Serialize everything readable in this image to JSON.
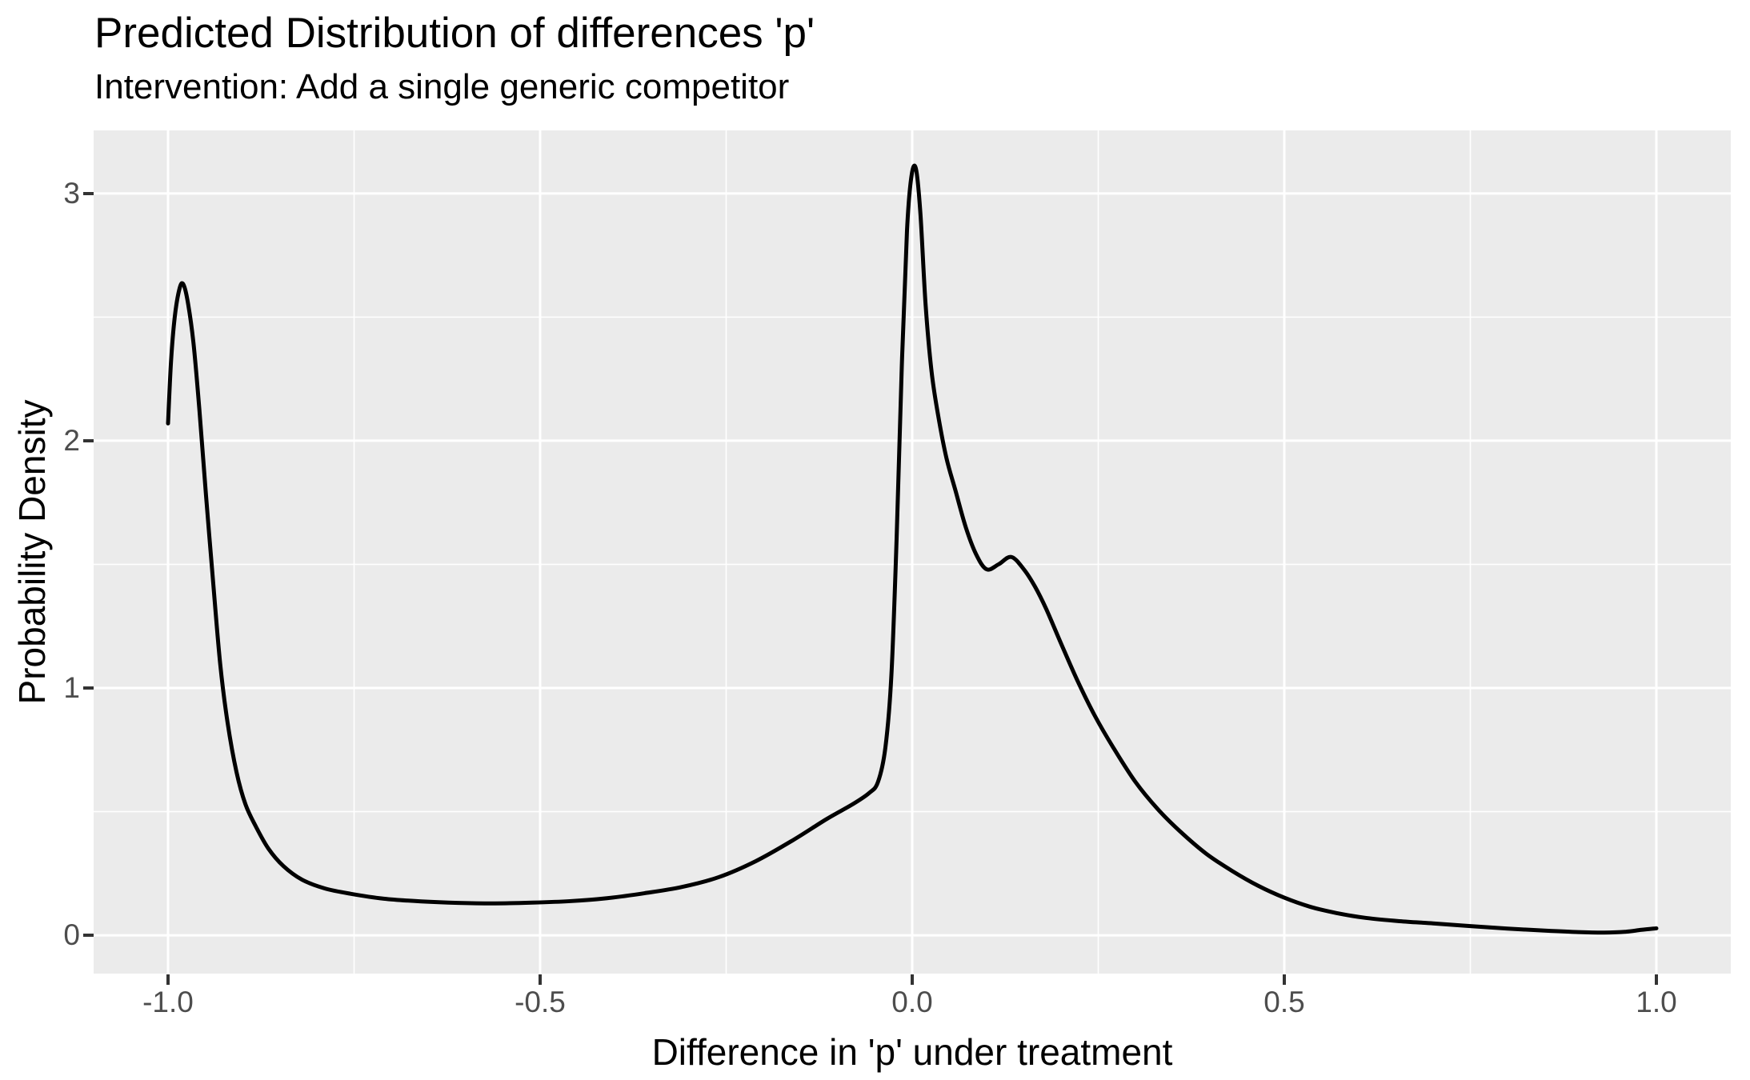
{
  "title": "Predicted Distribution of differences 'p'",
  "subtitle": "Intervention: Add a single generic competitor",
  "chart_data": {
    "type": "line",
    "title": "Predicted Distribution of differences 'p'",
    "subtitle": "Intervention: Add a single generic competitor",
    "xlabel": "Difference in 'p' under treatment",
    "ylabel": "Probability Density",
    "xlim": [
      -1.1,
      1.1
    ],
    "ylim": [
      -0.155,
      3.255
    ],
    "x_tick_values": [
      -1.0,
      -0.5,
      0.0,
      0.5,
      1.0
    ],
    "x_tick_labels": [
      "-1.0",
      "-0.5",
      "0.0",
      "0.5",
      "1.0"
    ],
    "y_tick_values": [
      0,
      1,
      2,
      3
    ],
    "y_tick_labels": [
      "0",
      "1",
      "2",
      "3"
    ],
    "x_minor_gridlines": [
      -0.75,
      -0.25,
      0.25,
      0.75
    ],
    "y_minor_gridlines": [
      0.5,
      1.5,
      2.5
    ],
    "grid": "white major and minor gridlines on gray panel",
    "legend": "none",
    "panel_background": "#EBEBEB",
    "gridline_color": "#FFFFFF",
    "tick_mark_color": "#333333",
    "tick_label_color": "#4D4D4D",
    "series": [
      {
        "name": "density",
        "color": "#000000",
        "stroke_width": 5,
        "points": [
          [
            -1.0,
            2.07
          ],
          [
            -0.996,
            2.32
          ],
          [
            -0.991,
            2.5
          ],
          [
            -0.985,
            2.61
          ],
          [
            -0.98,
            2.635
          ],
          [
            -0.974,
            2.57
          ],
          [
            -0.966,
            2.4
          ],
          [
            -0.958,
            2.13
          ],
          [
            -0.949,
            1.78
          ],
          [
            -0.94,
            1.45
          ],
          [
            -0.93,
            1.1
          ],
          [
            -0.92,
            0.86
          ],
          [
            -0.908,
            0.66
          ],
          [
            -0.896,
            0.53
          ],
          [
            -0.882,
            0.44
          ],
          [
            -0.865,
            0.35
          ],
          [
            -0.845,
            0.28
          ],
          [
            -0.82,
            0.225
          ],
          [
            -0.79,
            0.19
          ],
          [
            -0.755,
            0.168
          ],
          [
            -0.71,
            0.148
          ],
          [
            -0.66,
            0.137
          ],
          [
            -0.61,
            0.131
          ],
          [
            -0.56,
            0.129
          ],
          [
            -0.51,
            0.132
          ],
          [
            -0.46,
            0.138
          ],
          [
            -0.41,
            0.15
          ],
          [
            -0.36,
            0.17
          ],
          [
            -0.31,
            0.195
          ],
          [
            -0.26,
            0.235
          ],
          [
            -0.21,
            0.3
          ],
          [
            -0.16,
            0.385
          ],
          [
            -0.115,
            0.47
          ],
          [
            -0.08,
            0.53
          ],
          [
            -0.058,
            0.575
          ],
          [
            -0.046,
            0.62
          ],
          [
            -0.036,
            0.76
          ],
          [
            -0.028,
            1.05
          ],
          [
            -0.021,
            1.6
          ],
          [
            -0.014,
            2.3
          ],
          [
            -0.007,
            2.85
          ],
          [
            -0.001,
            3.07
          ],
          [
            0.005,
            3.1
          ],
          [
            0.011,
            2.92
          ],
          [
            0.018,
            2.55
          ],
          [
            0.026,
            2.28
          ],
          [
            0.035,
            2.1
          ],
          [
            0.046,
            1.93
          ],
          [
            0.058,
            1.8
          ],
          [
            0.072,
            1.65
          ],
          [
            0.086,
            1.54
          ],
          [
            0.1,
            1.48
          ],
          [
            0.116,
            1.5
          ],
          [
            0.133,
            1.53
          ],
          [
            0.15,
            1.48
          ],
          [
            0.165,
            1.41
          ],
          [
            0.18,
            1.32
          ],
          [
            0.2,
            1.18
          ],
          [
            0.222,
            1.03
          ],
          [
            0.245,
            0.89
          ],
          [
            0.27,
            0.76
          ],
          [
            0.3,
            0.62
          ],
          [
            0.33,
            0.51
          ],
          [
            0.36,
            0.42
          ],
          [
            0.395,
            0.33
          ],
          [
            0.43,
            0.26
          ],
          [
            0.465,
            0.2
          ],
          [
            0.5,
            0.152
          ],
          [
            0.535,
            0.115
          ],
          [
            0.57,
            0.09
          ],
          [
            0.61,
            0.07
          ],
          [
            0.655,
            0.057
          ],
          [
            0.7,
            0.048
          ],
          [
            0.75,
            0.037
          ],
          [
            0.8,
            0.027
          ],
          [
            0.85,
            0.019
          ],
          [
            0.895,
            0.013
          ],
          [
            0.93,
            0.011
          ],
          [
            0.958,
            0.014
          ],
          [
            0.98,
            0.022
          ],
          [
            1.0,
            0.028
          ]
        ]
      }
    ]
  }
}
